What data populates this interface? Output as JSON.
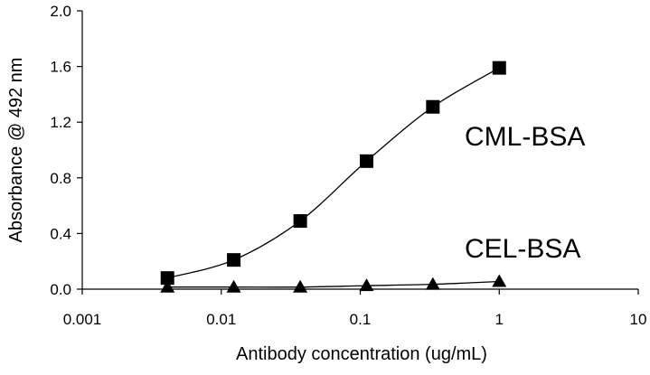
{
  "chart_data": {
    "type": "line",
    "x_scale": "log",
    "xlabel": "Antibody concentration (ug/mL)",
    "ylabel": "Absorbance @ 492 nm",
    "xlim": [
      0.001,
      10
    ],
    "ylim": [
      0,
      2.0
    ],
    "x_ticks": [
      "0.001",
      "0.01",
      "0.1",
      "1",
      "10"
    ],
    "y_ticks": [
      "0.0",
      "0.4",
      "0.8",
      "1.2",
      "1.6",
      "2.0"
    ],
    "grid": false,
    "series": [
      {
        "name": "CML-BSA",
        "marker": "square",
        "x": [
          0.0041,
          0.0123,
          0.037,
          0.111,
          0.333,
          1.0
        ],
        "y": [
          0.08,
          0.21,
          0.49,
          0.92,
          1.31,
          1.59
        ]
      },
      {
        "name": "CEL-BSA",
        "marker": "triangle",
        "x": [
          0.0041,
          0.0123,
          0.037,
          0.111,
          0.333,
          1.0
        ],
        "y": [
          0.015,
          0.015,
          0.015,
          0.025,
          0.035,
          0.055
        ]
      }
    ]
  }
}
